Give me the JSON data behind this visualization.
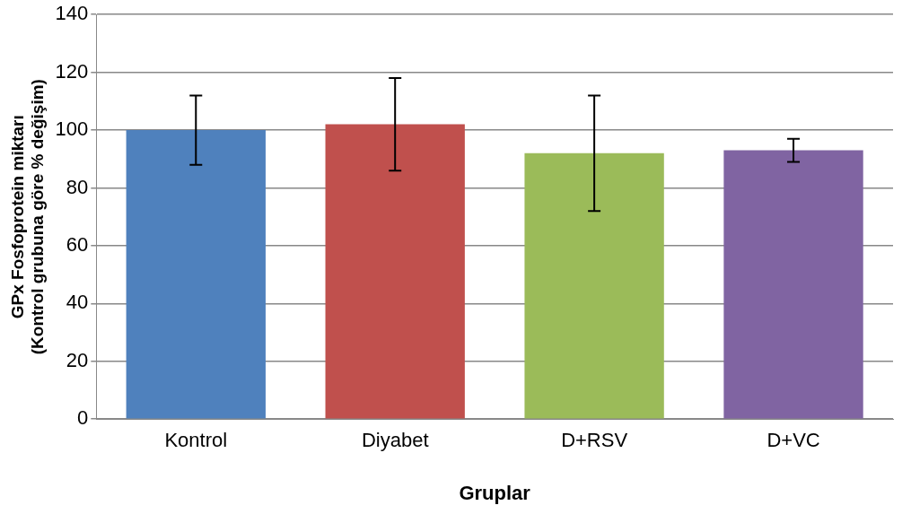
{
  "chart_data": {
    "type": "bar",
    "xlabel": "Gruplar",
    "ylabel": "GPx Fosfoprotein miktarı\n(Kontrol grubuna göre % değişim)",
    "categories": [
      "Kontrol",
      "Diyabet",
      "D+RSV",
      "D+VC"
    ],
    "values": [
      100,
      102,
      92,
      93
    ],
    "colors": [
      "#4f81bd",
      "#c0504d",
      "#9bbb59",
      "#8064a2"
    ],
    "errors": [
      12,
      16,
      20,
      4
    ],
    "ylim": [
      0,
      140
    ],
    "yticks": [
      0,
      20,
      40,
      60,
      80,
      100,
      120,
      140
    ],
    "grid": "y",
    "legend": false
  }
}
